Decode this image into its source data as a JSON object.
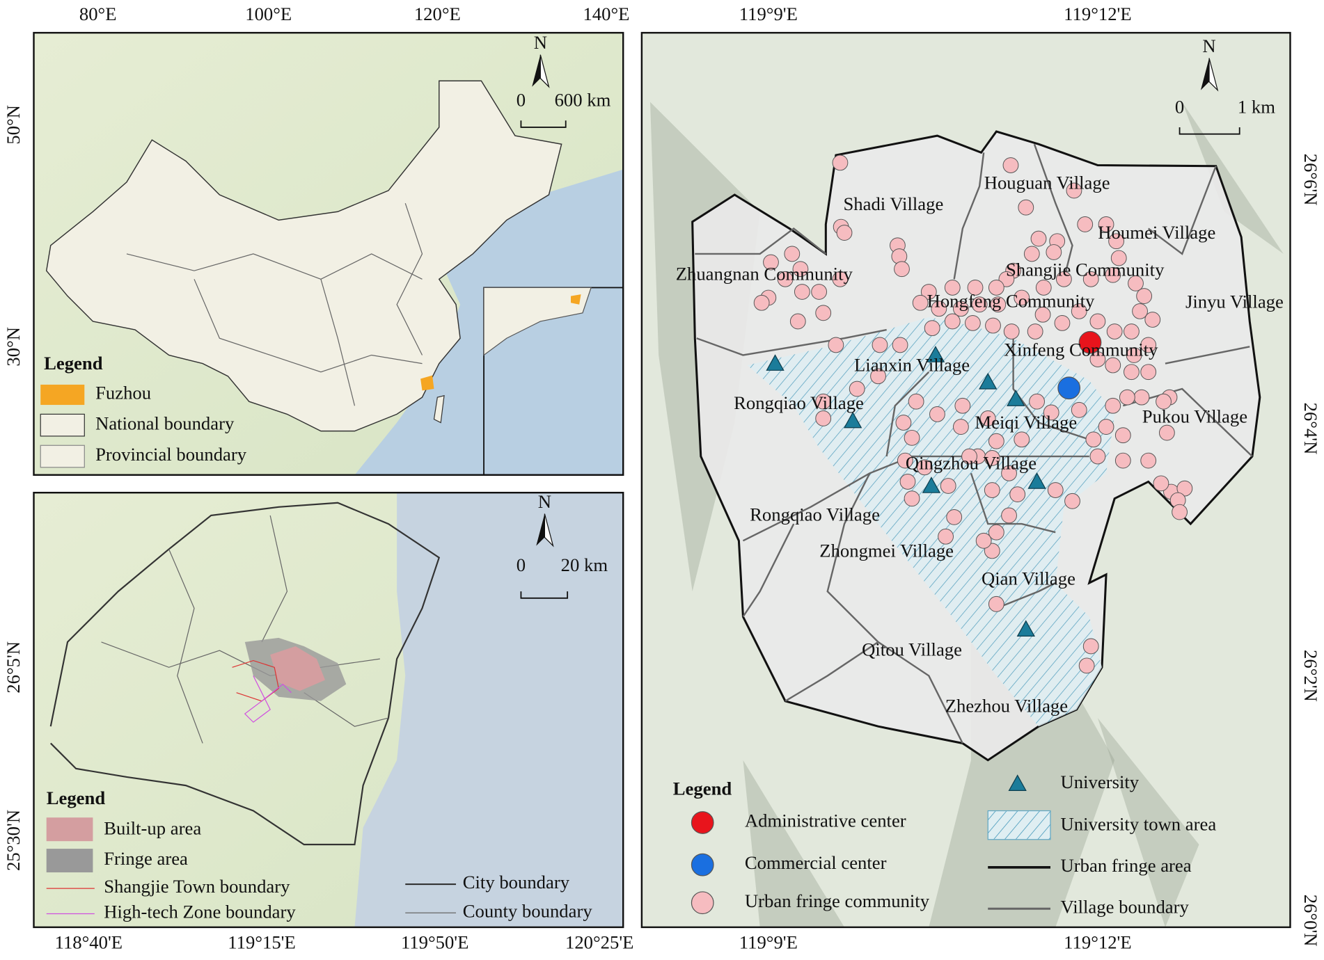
{
  "overview_map": {
    "top_axis": [
      "80°E",
      "100°E",
      "120°E",
      "140°E"
    ],
    "left_axis": [
      "50°N",
      "30°N"
    ],
    "north": "N",
    "scale": [
      "0",
      "600 km"
    ],
    "legend": {
      "title": "Legend",
      "items": [
        "Fuzhou",
        "National boundary",
        "Provincial boundary"
      ]
    }
  },
  "city_map": {
    "bottom_axis": [
      "118°40'E",
      "119°15'E",
      "119°50'E",
      "120°25'E"
    ],
    "left_axis": [
      "26°5'N",
      "25°30'N"
    ],
    "north": "N",
    "scale": [
      "0",
      "20 km"
    ],
    "legend": {
      "title": "Legend",
      "items": [
        "Built-up area",
        "Fringe area",
        "Shangjie Town boundary",
        "High-tech Zone boundary",
        "City boundary",
        "County boundary"
      ]
    }
  },
  "study_map": {
    "lon_axis": [
      "119°9'E",
      "119°12'E"
    ],
    "right_axis": [
      "26°6'N",
      "26°4'N",
      "26°2'N",
      "26°0'N"
    ],
    "north": "N",
    "scale": [
      "0",
      "1 km"
    ],
    "places": [
      "Houguan Village",
      "Shadi Village",
      "Houmei Village",
      "Zhuangnan Community",
      "Shangjie Community",
      "Hongfeng Community",
      "Jinyu Village",
      "Xinfeng Community",
      "Lianxin Village",
      "Rongqiao Village",
      "Meiqi Village",
      "Pukou Village",
      "Qingzhou Village",
      "Rongqiao Village",
      "Zhongmei Village",
      "Qian Village",
      "Qitou Village",
      "Zhezhou Village"
    ],
    "legend": {
      "title": "Legend",
      "items": [
        "Administrative center",
        "Commercial center",
        "Urban fringe community",
        "University",
        "University town area",
        "Urban fringe area",
        "Village boundary"
      ]
    }
  }
}
